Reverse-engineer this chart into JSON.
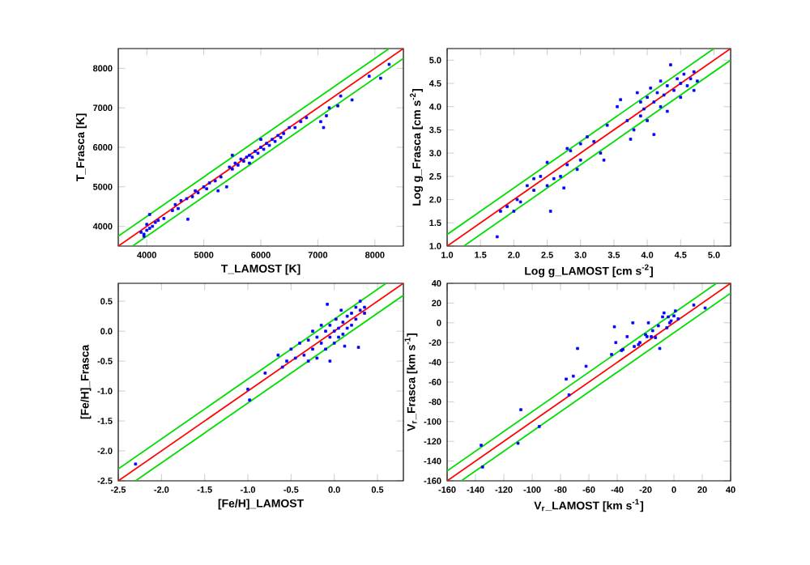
{
  "chart_data": [
    {
      "type": "scatter",
      "xlabel": "T_LAMOST [K]",
      "ylabel": "T_Frasca [K]",
      "xlim": [
        3500,
        8500
      ],
      "ylim": [
        3500,
        8500
      ],
      "xticks": [
        4000,
        5000,
        6000,
        7000,
        8000
      ],
      "yticks": [
        4000,
        5000,
        6000,
        7000,
        8000
      ],
      "series": [
        {
          "type": "scatter",
          "color": "#0000ff",
          "marker": "square",
          "x": [
            3900,
            3950,
            4000,
            4050,
            4000,
            3950,
            4100,
            4150,
            4050,
            4200,
            4300,
            4450,
            4500,
            4550,
            4600,
            4700,
            4720,
            4800,
            4850,
            4900,
            5000,
            5050,
            5100,
            5200,
            5250,
            5300,
            5400,
            5450,
            5500,
            5550,
            5600,
            5650,
            5700,
            5750,
            5800,
            5850,
            5900,
            5950,
            6000,
            6050,
            6100,
            6150,
            6200,
            6250,
            6300,
            6350,
            6400,
            6500,
            6600,
            6700,
            6800,
            7050,
            7100,
            7150,
            7200,
            7350,
            7400,
            7600,
            7900,
            8100,
            8250,
            5800,
            6000,
            5500
          ],
          "values": [
            3850,
            3800,
            3900,
            3950,
            4050,
            3750,
            4000,
            4100,
            4300,
            4150,
            4200,
            4400,
            4550,
            4450,
            4650,
            4700,
            4180,
            4750,
            4900,
            4850,
            5000,
            4950,
            5100,
            5150,
            4900,
            5250,
            5000,
            5500,
            5450,
            5600,
            5550,
            5700,
            5650,
            5750,
            5800,
            5750,
            5900,
            5850,
            6000,
            5950,
            6100,
            6050,
            6200,
            6150,
            6300,
            6250,
            6350,
            6500,
            6500,
            6650,
            6750,
            6650,
            6500,
            6800,
            7000,
            7050,
            7300,
            7200,
            7800,
            7750,
            8100,
            5600,
            6200,
            5800
          ]
        },
        {
          "type": "line",
          "color": "#ff0000",
          "line_style": "solid",
          "x": [
            3500,
            8500
          ],
          "values": [
            3500,
            8500
          ]
        },
        {
          "type": "line",
          "color": "#00dd00",
          "line_style": "solid",
          "x": [
            3500,
            8250
          ],
          "values": [
            3750,
            8500
          ]
        },
        {
          "type": "line",
          "color": "#00dd00",
          "line_style": "solid",
          "x": [
            3750,
            8500
          ],
          "values": [
            3500,
            8250
          ]
        }
      ]
    },
    {
      "type": "scatter",
      "xlabel": "Log g_LAMOST [cm s$^{-2}$]",
      "ylabel": "Log g_Frasca [cm s$^{-2}$]",
      "xlim": [
        1.0,
        5.25
      ],
      "ylim": [
        1.0,
        5.25
      ],
      "xticks": [
        {
          "value": 1.0,
          "label": "1.0"
        },
        1.5,
        {
          "value": 2.0,
          "label": "2.0"
        },
        2.5,
        {
          "value": 3.0,
          "label": "3.0"
        },
        3.5,
        {
          "value": 4.0,
          "label": "4.0"
        },
        4.5,
        {
          "value": 5.0,
          "label": "5.0"
        }
      ],
      "yticks": [
        {
          "value": 1.0,
          "label": "1.0"
        },
        1.5,
        {
          "value": 2.0,
          "label": "2.0"
        },
        2.5,
        {
          "value": 3.0,
          "label": "3.0"
        },
        3.5,
        {
          "value": 4.0,
          "label": "4.0"
        },
        4.5,
        {
          "value": 5.0,
          "label": "5.0"
        }
      ],
      "series": [
        {
          "type": "scatter",
          "color": "#0000ff",
          "marker": "square",
          "x": [
            1.75,
            1.8,
            1.9,
            2.0,
            2.05,
            2.1,
            2.2,
            2.3,
            2.4,
            2.5,
            2.5,
            2.55,
            2.6,
            2.7,
            2.75,
            2.8,
            2.8,
            2.85,
            2.95,
            3.0,
            3.1,
            3.2,
            3.3,
            3.35,
            3.4,
            3.55,
            3.6,
            3.7,
            3.75,
            3.8,
            3.85,
            3.9,
            3.9,
            3.95,
            4.0,
            4.0,
            4.05,
            4.1,
            4.1,
            4.15,
            4.2,
            4.2,
            4.25,
            4.3,
            4.3,
            4.35,
            4.4,
            4.45,
            4.5,
            4.5,
            4.55,
            4.6,
            4.65,
            4.7,
            4.7,
            4.75,
            3.0,
            2.3
          ],
          "values": [
            1.2,
            1.75,
            1.85,
            1.75,
            2.0,
            1.95,
            2.3,
            2.45,
            2.5,
            2.8,
            2.3,
            1.75,
            2.45,
            2.5,
            2.25,
            3.1,
            2.75,
            3.05,
            2.65,
            3.2,
            3.35,
            3.25,
            3.0,
            2.85,
            3.6,
            4.0,
            4.15,
            3.7,
            3.3,
            3.5,
            4.3,
            4.1,
            3.8,
            3.95,
            4.2,
            3.7,
            4.4,
            4.1,
            3.4,
            4.3,
            4.55,
            4.0,
            4.25,
            4.45,
            3.9,
            4.9,
            4.35,
            4.6,
            4.2,
            4.5,
            4.7,
            4.45,
            4.6,
            4.75,
            4.35,
            4.55,
            2.85,
            2.2
          ]
        },
        {
          "type": "line",
          "color": "#ff0000",
          "line_style": "solid",
          "x": [
            1.0,
            5.25
          ],
          "values": [
            1.0,
            5.25
          ]
        },
        {
          "type": "line",
          "color": "#00dd00",
          "line_style": "solid",
          "x": [
            1.0,
            5.0
          ],
          "values": [
            1.25,
            5.25
          ]
        },
        {
          "type": "line",
          "color": "#00dd00",
          "line_style": "solid",
          "x": [
            1.25,
            5.25
          ],
          "values": [
            1.0,
            5.0
          ]
        }
      ]
    },
    {
      "type": "scatter",
      "xlabel": "[Fe/H]_LAMOST",
      "ylabel": "[Fe/H]_Frasca",
      "xlim": [
        -2.5,
        0.8
      ],
      "ylim": [
        -2.5,
        0.8
      ],
      "xticks": [
        -2.5,
        {
          "value": -2.0,
          "label": "-2.0"
        },
        -1.5,
        {
          "value": -1.0,
          "label": "-1.0"
        },
        -0.5,
        {
          "value": 0.0,
          "label": "0.0"
        },
        0.5
      ],
      "yticks": [
        -2.5,
        {
          "value": -2.0,
          "label": "-2.0"
        },
        -1.5,
        {
          "value": -1.0,
          "label": "-1.0"
        },
        -0.5,
        {
          "value": 0.0,
          "label": "0.0"
        },
        0.5
      ],
      "series": [
        {
          "type": "scatter",
          "color": "#0000ff",
          "marker": "square",
          "x": [
            -2.3,
            -1.0,
            -0.98,
            -0.8,
            -0.65,
            -0.6,
            -0.55,
            -0.5,
            -0.45,
            -0.4,
            -0.35,
            -0.3,
            -0.3,
            -0.25,
            -0.2,
            -0.2,
            -0.15,
            -0.15,
            -0.1,
            -0.1,
            -0.08,
            -0.05,
            -0.05,
            0.0,
            0.0,
            0.02,
            0.05,
            0.05,
            0.08,
            0.1,
            0.1,
            0.12,
            0.15,
            0.15,
            0.2,
            0.2,
            0.25,
            0.25,
            0.28,
            0.3,
            0.3,
            0.35,
            0.35,
            -0.05,
            -0.25
          ],
          "values": [
            -2.22,
            -0.97,
            -1.15,
            -0.7,
            -0.4,
            -0.6,
            -0.5,
            -0.3,
            -0.45,
            -0.2,
            -0.4,
            -0.5,
            -0.15,
            -0.3,
            -0.1,
            -0.45,
            0.1,
            -0.2,
            0.0,
            -0.3,
            0.45,
            -0.1,
            0.1,
            0.0,
            -0.2,
            0.2,
            0.05,
            -0.1,
            0.35,
            0.15,
            -0.05,
            -0.25,
            0.25,
            0.05,
            0.3,
            0.1,
            0.4,
            0.2,
            -0.27,
            0.5,
            0.35,
            0.4,
            0.3,
            -0.5,
            0.0
          ]
        },
        {
          "type": "line",
          "color": "#ff0000",
          "line_style": "solid",
          "x": [
            -2.5,
            0.8
          ],
          "values": [
            -2.5,
            0.8
          ]
        },
        {
          "type": "line",
          "color": "#00dd00",
          "line_style": "solid",
          "x": [
            -2.5,
            0.6
          ],
          "values": [
            -2.3,
            0.8
          ]
        },
        {
          "type": "line",
          "color": "#00dd00",
          "line_style": "solid",
          "x": [
            -2.3,
            0.8
          ],
          "values": [
            -2.5,
            0.6
          ]
        }
      ]
    },
    {
      "type": "scatter",
      "xlabel": "V$_{r}$_LAMOST [km s$^{-1}$]",
      "ylabel": "V$_{r}$_Frasca [km s$^{-1}$]",
      "xlim": [
        -160,
        40
      ],
      "ylim": [
        -160,
        40
      ],
      "xticks": [
        -160,
        -140,
        -120,
        -100,
        -80,
        -60,
        -40,
        -20,
        0,
        20,
        40
      ],
      "yticks": [
        -160,
        -140,
        -120,
        -100,
        -80,
        -60,
        -40,
        -20,
        0,
        20,
        40
      ],
      "series": [
        {
          "type": "scatter",
          "color": "#0000ff",
          "marker": "square",
          "x": [
            -136,
            -135,
            -110,
            -108,
            -95,
            -76,
            -74,
            -71,
            -68,
            -62,
            -44,
            -42,
            -41,
            -37,
            -36,
            -33,
            -29,
            -28,
            -25,
            -24,
            -19,
            -18,
            -16,
            -15,
            -13,
            -11,
            -10,
            -8,
            -7,
            -5,
            -4,
            -3,
            0,
            1,
            3,
            14,
            22,
            -20,
            -2
          ],
          "values": [
            -124,
            -146,
            -122,
            -88,
            -105,
            -57,
            -73,
            -54,
            -26,
            -44,
            -32,
            -4,
            -20,
            -28,
            -27,
            -14,
            0,
            -24,
            -22,
            -20,
            -14,
            0,
            -14,
            -8,
            -15,
            -3,
            -26,
            6,
            10,
            -5,
            6,
            0,
            7,
            12,
            4,
            18,
            15,
            -12,
            2
          ]
        },
        {
          "type": "line",
          "color": "#ff0000",
          "line_style": "solid",
          "x": [
            -160,
            40
          ],
          "values": [
            -160,
            40
          ]
        },
        {
          "type": "line",
          "color": "#00dd00",
          "line_style": "solid",
          "x": [
            -160,
            30
          ],
          "values": [
            -150,
            40
          ]
        },
        {
          "type": "line",
          "color": "#00dd00",
          "line_style": "solid",
          "x": [
            -150,
            40
          ],
          "values": [
            -160,
            30
          ]
        }
      ]
    }
  ]
}
